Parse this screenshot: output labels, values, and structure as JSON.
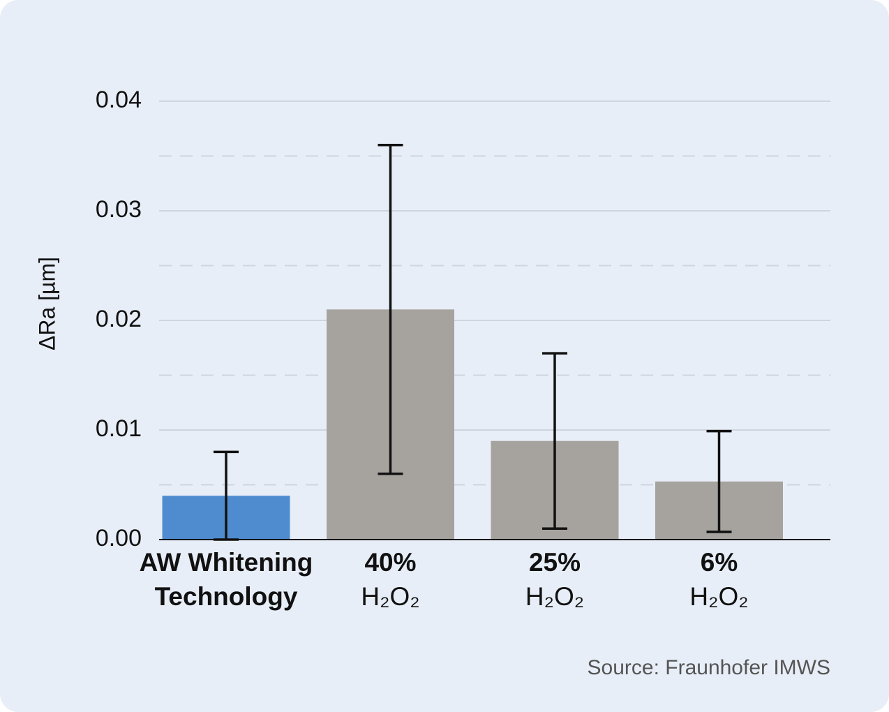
{
  "chart_data": {
    "type": "bar",
    "y_label": "ΔRa [µm]",
    "source": "Source: Fraunhofer IMWS",
    "categories": [
      [
        "AW Whitening",
        "Technology"
      ],
      [
        "40%",
        "H₂O₂"
      ],
      [
        "25%",
        "H₂O₂"
      ],
      [
        "6%",
        "H₂O₂"
      ]
    ],
    "values": [
      0.004,
      0.021,
      0.009,
      0.0053
    ],
    "errors": [
      0.004,
      0.015,
      0.008,
      0.0046
    ],
    "colors": [
      "#4f8ccf",
      "#a6a39e",
      "#a6a39e",
      "#a6a39e"
    ],
    "ylim": [
      0,
      0.04
    ],
    "yticks": [
      {
        "value": 0,
        "label": "0.00"
      },
      0.01,
      0.02,
      0.03,
      0.04
    ],
    "minor_yticks": [
      0.005,
      0.015,
      0.025,
      0.035
    ],
    "grid": true
  }
}
